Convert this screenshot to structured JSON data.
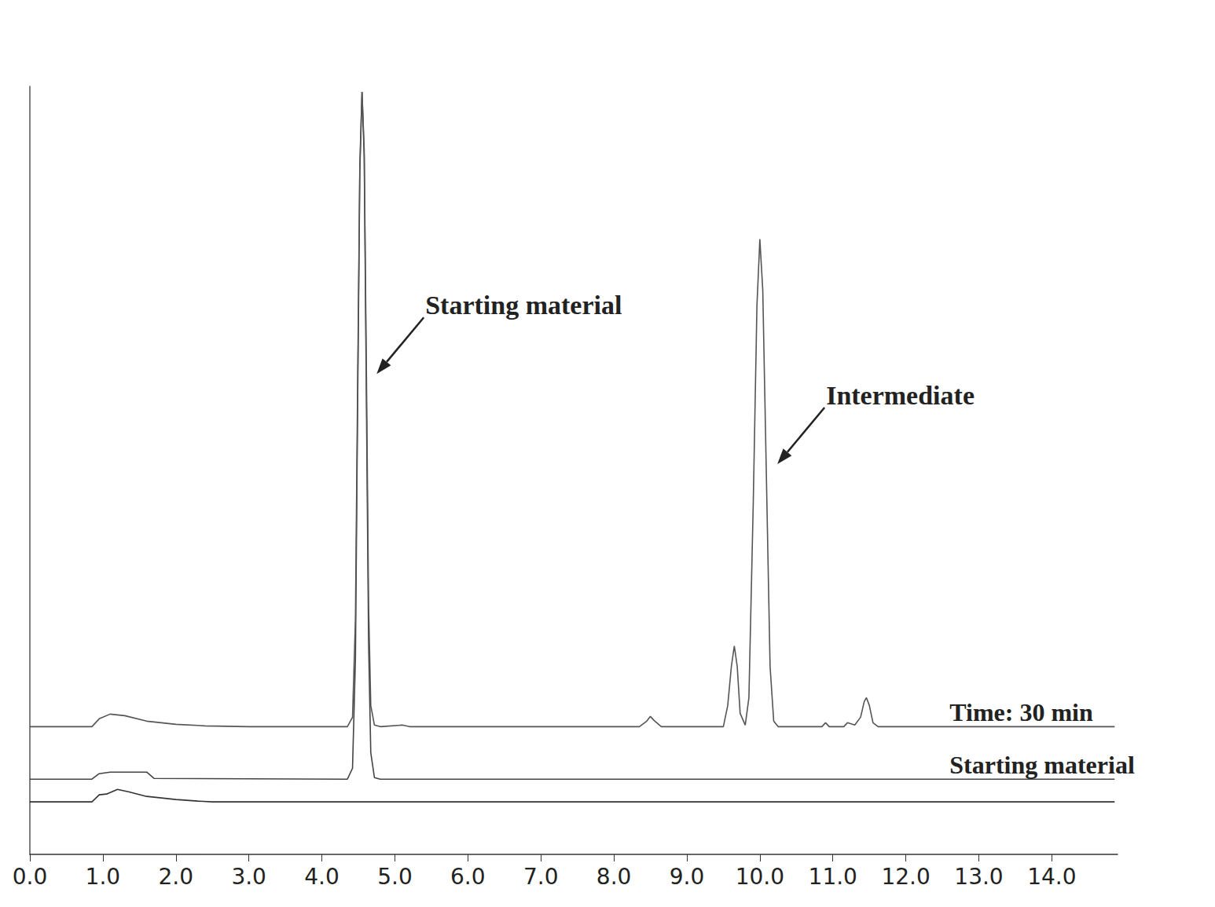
{
  "chart_data": {
    "type": "line",
    "xlim": [
      0,
      14.9
    ],
    "xticks": [
      {
        "value": 0,
        "label": "0.0"
      },
      {
        "value": 1,
        "label": "1.0"
      },
      {
        "value": 2,
        "label": "2.0"
      },
      {
        "value": 3,
        "label": "3.0"
      },
      {
        "value": 4,
        "label": "4.0"
      },
      {
        "value": 5,
        "label": "5.0"
      },
      {
        "value": 6,
        "label": "6.0"
      },
      {
        "value": 7,
        "label": "7.0"
      },
      {
        "value": 8,
        "label": "8.0"
      },
      {
        "value": 9,
        "label": "9.0"
      },
      {
        "value": 10,
        "label": "10.0"
      },
      {
        "value": 11,
        "label": "11.0"
      },
      {
        "value": 12,
        "label": "12.0"
      },
      {
        "value": 13,
        "label": "13.0"
      },
      {
        "value": 14,
        "label": "14.0"
      }
    ],
    "ylim": [
      0,
      98
    ],
    "tick_labels": "x",
    "grid": false,
    "series": [
      {
        "name": "Time: 30 min",
        "color": "#555555",
        "x": [
          0,
          0.85,
          0.95,
          1.1,
          1.3,
          1.6,
          2.0,
          2.4,
          3.0,
          4.35,
          4.42,
          4.46,
          4.49,
          4.52,
          4.55,
          4.58,
          4.61,
          4.64,
          4.67,
          4.72,
          4.8,
          5.1,
          5.2,
          8.35,
          8.45,
          8.5,
          8.55,
          8.65,
          9.5,
          9.56,
          9.61,
          9.65,
          9.69,
          9.73,
          9.8,
          9.85,
          9.91,
          9.96,
          10.0,
          10.04,
          10.09,
          10.14,
          10.19,
          10.25,
          10.85,
          10.9,
          10.95,
          11.15,
          11.2,
          11.3,
          11.38,
          11.43,
          11.46,
          11.5,
          11.55,
          11.62,
          14.86
        ],
        "values": [
          16.3,
          16.3,
          17.3,
          17.9,
          17.7,
          17.0,
          16.6,
          16.4,
          16.3,
          16.3,
          17.5,
          30,
          60,
          88,
          97.3,
          90,
          62,
          32,
          19,
          16.5,
          16.3,
          16.5,
          16.3,
          16.3,
          17.0,
          17.6,
          17.1,
          16.3,
          16.3,
          19,
          24,
          26.6,
          24,
          18,
          16.5,
          20,
          45,
          70,
          78.5,
          72,
          48,
          24,
          17,
          16.3,
          16.3,
          16.8,
          16.3,
          16.3,
          16.8,
          16.5,
          17.5,
          19.5,
          20.0,
          19,
          16.8,
          16.3,
          16.3
        ]
      },
      {
        "name": "Starting material",
        "color": "#444444",
        "x": [
          0,
          0.85,
          0.95,
          1.1,
          1.6,
          1.7,
          4.35,
          4.42,
          4.46,
          4.49,
          4.52,
          4.55,
          4.58,
          4.61,
          4.64,
          4.67,
          4.72,
          4.8,
          14.86
        ],
        "values": [
          9.6,
          9.6,
          10.3,
          10.5,
          10.5,
          9.7,
          9.6,
          11.0,
          25,
          57,
          87,
          97.3,
          89,
          58,
          27,
          13,
          9.8,
          9.6,
          9.6
        ]
      },
      {
        "color": "#333333",
        "x": [
          0,
          0.85,
          0.95,
          1.05,
          1.2,
          1.35,
          1.6,
          2.0,
          2.3,
          2.5,
          14.86
        ],
        "values": [
          6.7,
          6.7,
          7.6,
          7.7,
          8.3,
          8.0,
          7.4,
          7.0,
          6.8,
          6.7,
          6.7
        ]
      }
    ],
    "annotations": [
      {
        "text": "Starting material",
        "x": 4.75,
        "y": 61.3
      },
      {
        "text": "Intermediate",
        "x": 10.24,
        "y": 49.8
      }
    ]
  }
}
